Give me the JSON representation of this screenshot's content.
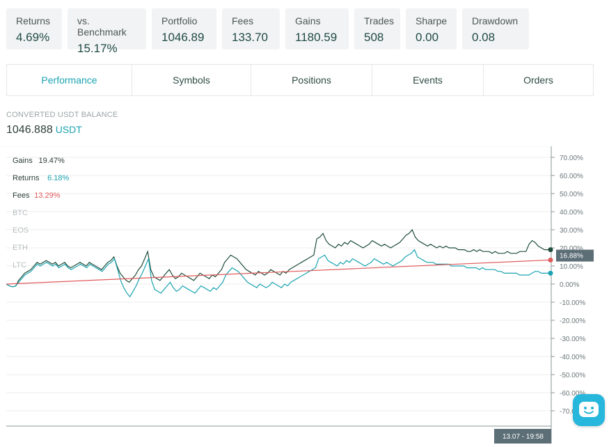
{
  "stats": [
    {
      "label": "Returns",
      "value": "4.69%"
    },
    {
      "label": "vs. Benchmark",
      "value": "15.17%"
    },
    {
      "label": "Portfolio",
      "value": "1046.89"
    },
    {
      "label": "Fees",
      "value": "133.70"
    },
    {
      "label": "Gains",
      "value": "1180.59"
    },
    {
      "label": "Trades",
      "value": "508"
    },
    {
      "label": "Sharpe",
      "value": "0.00"
    },
    {
      "label": "Drawdown",
      "value": "0.08"
    }
  ],
  "tabs": [
    {
      "label": "Performance",
      "active": true
    },
    {
      "label": "Symbols",
      "active": false
    },
    {
      "label": "Positions",
      "active": false
    },
    {
      "label": "Events",
      "active": false
    },
    {
      "label": "Orders",
      "active": false
    }
  ],
  "balance": {
    "label": "CONVERTED USDT BALANCE",
    "value": "1046.888",
    "unit": "USDT"
  },
  "chart_data": {
    "type": "line",
    "legend": [
      {
        "name": "Gains",
        "value": "19.47%",
        "color": "#2c3e3a"
      },
      {
        "name": "Returns",
        "value": "6.18%",
        "color": "#1aa3b0"
      },
      {
        "name": "Fees",
        "value": "13.29%",
        "color": "#e05a5a"
      },
      {
        "name": "BTC",
        "value": "",
        "color": "#b8bec0"
      },
      {
        "name": "EOS",
        "value": "",
        "color": "#b8bec0"
      },
      {
        "name": "ETH",
        "value": "",
        "color": "#b8bec0"
      },
      {
        "name": "LTC",
        "value": "",
        "color": "#b8bec0"
      }
    ],
    "y_ticks": [
      "70.00%",
      "60.00%",
      "50.00%",
      "40.00%",
      "30.00%",
      "20.00%",
      "10.00%",
      "0.00%",
      "-10.00%",
      "-20.00%",
      "-30.00%",
      "-40.00%",
      "-50.00%",
      "-60.00%",
      "-70.00%"
    ],
    "ylim": [
      -70,
      70
    ],
    "current_value_label": "16.88%",
    "crosshair_label": "13.07 - 19:58",
    "series": [
      {
        "name": "Gains",
        "color": "#1e4d3a",
        "values": [
          0,
          -1,
          -1.5,
          -1.2,
          2,
          4,
          6,
          7,
          8,
          10,
          12,
          11,
          12,
          13,
          12,
          11,
          12,
          10,
          11,
          12,
          10,
          9,
          10,
          11,
          12,
          11,
          10,
          12,
          11,
          10,
          9,
          8,
          10,
          12,
          13,
          15,
          10,
          6,
          4,
          2,
          1,
          3,
          5,
          8,
          10,
          14,
          18,
          8,
          4,
          3,
          2,
          4,
          6,
          8,
          5,
          3,
          4,
          6,
          5,
          4,
          3,
          2,
          4,
          6,
          5,
          4,
          3,
          5,
          4,
          6,
          8,
          12,
          14,
          16,
          15,
          14,
          12,
          10,
          8,
          7,
          6,
          5,
          7,
          6,
          5,
          6,
          8,
          7,
          6,
          5,
          7,
          6,
          8,
          9,
          10,
          11,
          12,
          13,
          14,
          15,
          16,
          25,
          26,
          28,
          24,
          22,
          21,
          20,
          22,
          21,
          23,
          22,
          24,
          23,
          22,
          21,
          20,
          21,
          22,
          24,
          23,
          22,
          21,
          22,
          21,
          20,
          21,
          22,
          23,
          25,
          27,
          28,
          30,
          26,
          24,
          23,
          22,
          21,
          22,
          21,
          20,
          21,
          20,
          21,
          20,
          20,
          20,
          19,
          19,
          19,
          18,
          18,
          19,
          18,
          19,
          18,
          18,
          18,
          17,
          18,
          17,
          17,
          17,
          18,
          17,
          17,
          17,
          18,
          18,
          18,
          22,
          24,
          23,
          21,
          20,
          19,
          19,
          19
        ],
        "values_note_source": "estimated shape"
      },
      {
        "name": "Returns",
        "color": "#1aa3b0",
        "values": [
          0,
          -1,
          -1.5,
          -1.2,
          1,
          3,
          5,
          6,
          7,
          9,
          11,
          10,
          11,
          12,
          11,
          10,
          11,
          9,
          10,
          11,
          9,
          8,
          9,
          10,
          11,
          10,
          9,
          11,
          10,
          9,
          8,
          7,
          9,
          11,
          12,
          14,
          8,
          2,
          -2,
          -5,
          -7,
          -4,
          -1,
          3,
          6,
          10,
          14,
          2,
          -3,
          -4,
          -5,
          -3,
          -1,
          1,
          -2,
          -4,
          -3,
          -1,
          -2,
          -3,
          -4,
          -5,
          -3,
          -1,
          -2,
          -3,
          -4,
          -2,
          -3,
          -1,
          1,
          5,
          7,
          9,
          8,
          7,
          5,
          3,
          1,
          0,
          -1,
          -2,
          0,
          -1,
          -2,
          -1,
          1,
          0,
          -1,
          -2,
          0,
          -1,
          1,
          2,
          3,
          4,
          5,
          6,
          7,
          8,
          9,
          14,
          15,
          16,
          13,
          12,
          11,
          10,
          12,
          11,
          13,
          12,
          14,
          13,
          12,
          11,
          10,
          11,
          12,
          14,
          13,
          12,
          11,
          12,
          11,
          10,
          11,
          12,
          13,
          15,
          16,
          17,
          19,
          15,
          14,
          13,
          12,
          12,
          12,
          11,
          11,
          11,
          11,
          11,
          10,
          10,
          10,
          10,
          10,
          9,
          9,
          9,
          9,
          8,
          9,
          8,
          8,
          8,
          8,
          7,
          7,
          6,
          6,
          6,
          6,
          6,
          5,
          5,
          5,
          5,
          6,
          7,
          7,
          6,
          6,
          6,
          6
        ]
      },
      {
        "name": "Fees",
        "color": "#e05a5a",
        "values": [
          0,
          13.29
        ]
      }
    ]
  }
}
